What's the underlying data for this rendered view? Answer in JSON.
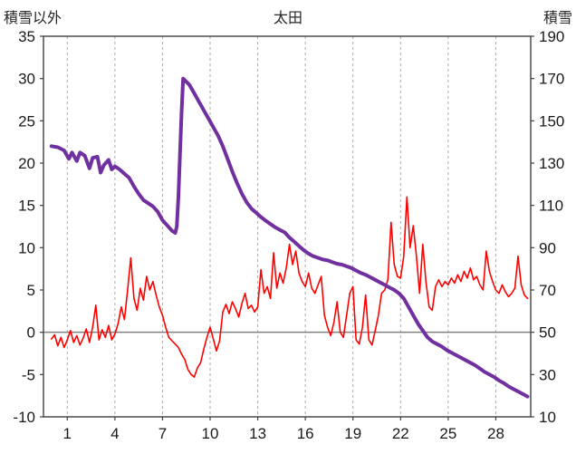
{
  "chart_data": {
    "type": "line",
    "title": "太田",
    "left_axis_label": "積雪以外",
    "right_axis_label": "積雪",
    "x_ticks": [
      1,
      4,
      7,
      10,
      13,
      16,
      19,
      22,
      25,
      28
    ],
    "xlim": [
      -0.5,
      30.2
    ],
    "left_ylim": [
      -10,
      35
    ],
    "left_yticks": [
      -10,
      -5,
      0,
      5,
      10,
      15,
      20,
      25,
      30,
      35
    ],
    "right_ylim": [
      10,
      190
    ],
    "right_yticks": [
      10,
      30,
      50,
      70,
      90,
      110,
      130,
      150,
      170,
      190
    ],
    "grid": "vertical-dashed",
    "zero_line": true,
    "colors": {
      "grid": "#ababab",
      "frame": "#404040",
      "zero_line": "#808080",
      "tick_text": "#1a1a1a"
    },
    "series": [
      {
        "key": "other-than-snow",
        "name": "積雪以外",
        "axis": "left",
        "color": "#FF0000",
        "width": 1.6,
        "points": [
          [
            0,
            -0.8
          ],
          [
            0.2,
            -0.3
          ],
          [
            0.4,
            -1.6
          ],
          [
            0.6,
            -0.6
          ],
          [
            0.8,
            -1.8
          ],
          [
            1.0,
            -0.9
          ],
          [
            1.2,
            0.2
          ],
          [
            1.4,
            -1.2
          ],
          [
            1.6,
            -0.4
          ],
          [
            1.8,
            -1.5
          ],
          [
            2.0,
            -0.7
          ],
          [
            2.2,
            0.4
          ],
          [
            2.4,
            -1.2
          ],
          [
            2.6,
            0.6
          ],
          [
            2.8,
            3.2
          ],
          [
            3.0,
            -0.9
          ],
          [
            3.2,
            0.3
          ],
          [
            3.4,
            -0.6
          ],
          [
            3.6,
            0.8
          ],
          [
            3.8,
            -0.9
          ],
          [
            4.0,
            -0.2
          ],
          [
            4.2,
            1.0
          ],
          [
            4.4,
            3.0
          ],
          [
            4.6,
            1.5
          ],
          [
            4.8,
            5.0
          ],
          [
            5.0,
            8.8
          ],
          [
            5.2,
            4.0
          ],
          [
            5.4,
            2.6
          ],
          [
            5.6,
            5.2
          ],
          [
            5.8,
            3.8
          ],
          [
            6.0,
            6.6
          ],
          [
            6.2,
            5.0
          ],
          [
            6.4,
            6.0
          ],
          [
            6.6,
            4.4
          ],
          [
            6.8,
            3.0
          ],
          [
            7.0,
            2.0
          ],
          [
            7.2,
            0.6
          ],
          [
            7.4,
            -0.6
          ],
          [
            7.6,
            -1.0
          ],
          [
            7.8,
            -1.4
          ],
          [
            8.0,
            -1.8
          ],
          [
            8.2,
            -2.6
          ],
          [
            8.4,
            -3.2
          ],
          [
            8.6,
            -4.4
          ],
          [
            8.8,
            -5.0
          ],
          [
            9.0,
            -5.3
          ],
          [
            9.2,
            -4.2
          ],
          [
            9.4,
            -3.6
          ],
          [
            9.6,
            -2.0
          ],
          [
            9.8,
            -0.6
          ],
          [
            10.0,
            0.6
          ],
          [
            10.2,
            -0.8
          ],
          [
            10.4,
            -2.2
          ],
          [
            10.6,
            -1.0
          ],
          [
            10.8,
            2.4
          ],
          [
            11.0,
            3.3
          ],
          [
            11.2,
            2.2
          ],
          [
            11.4,
            3.6
          ],
          [
            11.6,
            2.8
          ],
          [
            11.8,
            1.8
          ],
          [
            12.0,
            3.4
          ],
          [
            12.2,
            4.6
          ],
          [
            12.4,
            2.8
          ],
          [
            12.6,
            3.2
          ],
          [
            12.8,
            2.4
          ],
          [
            13.0,
            3.0
          ],
          [
            13.2,
            7.4
          ],
          [
            13.4,
            4.6
          ],
          [
            13.6,
            5.4
          ],
          [
            13.8,
            4.0
          ],
          [
            14.0,
            9.4
          ],
          [
            14.2,
            5.2
          ],
          [
            14.4,
            7.0
          ],
          [
            14.6,
            5.8
          ],
          [
            14.8,
            7.6
          ],
          [
            15.0,
            10.4
          ],
          [
            15.2,
            8.0
          ],
          [
            15.4,
            9.6
          ],
          [
            15.6,
            7.0
          ],
          [
            15.8,
            6.0
          ],
          [
            16.0,
            5.4
          ],
          [
            16.2,
            7.0
          ],
          [
            16.4,
            5.2
          ],
          [
            16.6,
            4.6
          ],
          [
            16.8,
            5.6
          ],
          [
            17.0,
            6.6
          ],
          [
            17.2,
            2.0
          ],
          [
            17.4,
            0.6
          ],
          [
            17.6,
            -0.4
          ],
          [
            17.8,
            1.2
          ],
          [
            18.0,
            3.6
          ],
          [
            18.2,
            0.0
          ],
          [
            18.4,
            -0.6
          ],
          [
            18.6,
            2.0
          ],
          [
            18.8,
            4.6
          ],
          [
            19.0,
            5.4
          ],
          [
            19.2,
            -0.9
          ],
          [
            19.4,
            -1.4
          ],
          [
            19.6,
            0.6
          ],
          [
            19.8,
            4.4
          ],
          [
            20.0,
            -0.9
          ],
          [
            20.2,
            -1.5
          ],
          [
            20.4,
            0.2
          ],
          [
            20.6,
            2.0
          ],
          [
            20.8,
            4.6
          ],
          [
            21.0,
            5.0
          ],
          [
            21.2,
            6.2
          ],
          [
            21.4,
            13.0
          ],
          [
            21.6,
            8.0
          ],
          [
            21.8,
            6.6
          ],
          [
            22.0,
            6.4
          ],
          [
            22.2,
            9.0
          ],
          [
            22.4,
            16.0
          ],
          [
            22.6,
            10.0
          ],
          [
            22.8,
            12.6
          ],
          [
            23.0,
            9.0
          ],
          [
            23.2,
            4.6
          ],
          [
            23.4,
            10.4
          ],
          [
            23.6,
            6.0
          ],
          [
            23.8,
            3.0
          ],
          [
            24.0,
            2.6
          ],
          [
            24.2,
            5.4
          ],
          [
            24.4,
            6.2
          ],
          [
            24.6,
            5.4
          ],
          [
            24.8,
            6.0
          ],
          [
            25.0,
            5.6
          ],
          [
            25.2,
            6.4
          ],
          [
            25.4,
            5.8
          ],
          [
            25.6,
            6.8
          ],
          [
            25.8,
            6.0
          ],
          [
            26.0,
            7.2
          ],
          [
            26.2,
            6.4
          ],
          [
            26.4,
            7.6
          ],
          [
            26.6,
            6.2
          ],
          [
            26.8,
            6.6
          ],
          [
            27.0,
            5.6
          ],
          [
            27.2,
            5.0
          ],
          [
            27.4,
            9.6
          ],
          [
            27.6,
            7.2
          ],
          [
            27.8,
            6.0
          ],
          [
            28.0,
            5.0
          ],
          [
            28.2,
            4.6
          ],
          [
            28.4,
            5.6
          ],
          [
            28.6,
            4.8
          ],
          [
            28.8,
            4.2
          ],
          [
            29.0,
            4.6
          ],
          [
            29.2,
            5.2
          ],
          [
            29.4,
            9.0
          ],
          [
            29.6,
            5.6
          ],
          [
            29.8,
            4.4
          ],
          [
            30.0,
            4.0
          ]
        ]
      },
      {
        "key": "snow-depth",
        "name": "積雪",
        "axis": "right",
        "color": "#7030A0",
        "width": 4,
        "points": [
          [
            0,
            138
          ],
          [
            0.4,
            137.5
          ],
          [
            0.8,
            136
          ],
          [
            1.1,
            132
          ],
          [
            1.3,
            135
          ],
          [
            1.6,
            131
          ],
          [
            1.8,
            135
          ],
          [
            2.1,
            133.5
          ],
          [
            2.4,
            127.5
          ],
          [
            2.6,
            132.5
          ],
          [
            2.9,
            133
          ],
          [
            3.1,
            125.5
          ],
          [
            3.3,
            129
          ],
          [
            3.6,
            131.5
          ],
          [
            3.8,
            127
          ],
          [
            4.0,
            128.5
          ],
          [
            4.3,
            127
          ],
          [
            4.6,
            125
          ],
          [
            4.9,
            123
          ],
          [
            5.2,
            119
          ],
          [
            5.5,
            115.5
          ],
          [
            5.8,
            112.5
          ],
          [
            6.1,
            111
          ],
          [
            6.4,
            109.5
          ],
          [
            6.7,
            107
          ],
          [
            7.0,
            103
          ],
          [
            7.3,
            100.5
          ],
          [
            7.6,
            98
          ],
          [
            7.8,
            97
          ],
          [
            7.9,
            100
          ],
          [
            8.0,
            114
          ],
          [
            8.1,
            134
          ],
          [
            8.2,
            154
          ],
          [
            8.3,
            170
          ],
          [
            8.5,
            168.5
          ],
          [
            8.7,
            167
          ],
          [
            9.0,
            163
          ],
          [
            9.3,
            159
          ],
          [
            9.6,
            155
          ],
          [
            9.9,
            151
          ],
          [
            10.2,
            147
          ],
          [
            10.5,
            143
          ],
          [
            10.8,
            138
          ],
          [
            11.1,
            132
          ],
          [
            11.4,
            126
          ],
          [
            11.7,
            120.5
          ],
          [
            12.0,
            115.5
          ],
          [
            12.3,
            111.5
          ],
          [
            12.6,
            108.5
          ],
          [
            12.9,
            106.5
          ],
          [
            13.2,
            104.5
          ],
          [
            13.5,
            102.8
          ],
          [
            13.8,
            101.2
          ],
          [
            14.1,
            99.6
          ],
          [
            14.4,
            98.4
          ],
          [
            14.7,
            97.2
          ],
          [
            15.0,
            94.8
          ],
          [
            15.3,
            92.8
          ],
          [
            15.6,
            90.8
          ],
          [
            15.9,
            88.8
          ],
          [
            16.2,
            87.2
          ],
          [
            16.5,
            86
          ],
          [
            16.8,
            85.2
          ],
          [
            17.1,
            84.4
          ],
          [
            17.4,
            84
          ],
          [
            17.7,
            83.2
          ],
          [
            18.0,
            82.4
          ],
          [
            18.3,
            82
          ],
          [
            18.6,
            81.2
          ],
          [
            18.9,
            80.4
          ],
          [
            19.2,
            79.2
          ],
          [
            19.5,
            78
          ],
          [
            19.8,
            77.2
          ],
          [
            20.1,
            76
          ],
          [
            20.4,
            74.8
          ],
          [
            20.7,
            73.6
          ],
          [
            21.0,
            72.4
          ],
          [
            21.3,
            71.2
          ],
          [
            21.6,
            70
          ],
          [
            21.9,
            68.4
          ],
          [
            22.2,
            66
          ],
          [
            22.5,
            62
          ],
          [
            22.8,
            58
          ],
          [
            23.1,
            54
          ],
          [
            23.4,
            50.8
          ],
          [
            23.7,
            47.6
          ],
          [
            24.0,
            45.6
          ],
          [
            24.3,
            44.4
          ],
          [
            24.6,
            43.2
          ],
          [
            24.9,
            41.6
          ],
          [
            25.2,
            40.4
          ],
          [
            25.5,
            39.2
          ],
          [
            25.8,
            38
          ],
          [
            26.1,
            36.8
          ],
          [
            26.4,
            35.6
          ],
          [
            26.7,
            34.4
          ],
          [
            27.0,
            32.8
          ],
          [
            27.3,
            31.2
          ],
          [
            27.6,
            30
          ],
          [
            27.9,
            28.8
          ],
          [
            28.2,
            27.2
          ],
          [
            28.5,
            26
          ],
          [
            28.8,
            24.4
          ],
          [
            29.1,
            23.2
          ],
          [
            29.4,
            22
          ],
          [
            29.7,
            20.8
          ],
          [
            30.0,
            19.6
          ]
        ]
      }
    ]
  }
}
